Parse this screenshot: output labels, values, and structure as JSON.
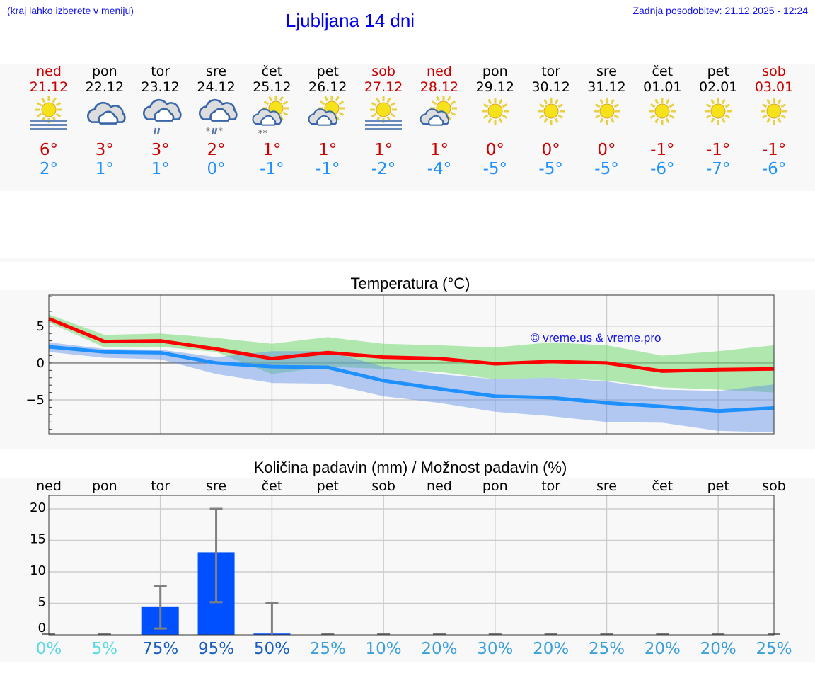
{
  "header": {
    "hint": "(kraj lahko izberete v meniju)",
    "title": "Ljubljana 14 dni",
    "updated": "Zadnja posodobitev: 21.12.2025 - 12:24"
  },
  "colors": {
    "weekend": "#cc0000",
    "max": "#ff0000",
    "min": "#1e90ff",
    "max_band": "#9ee59e",
    "min_band": "#a4c0f0",
    "bar": "#0050ff",
    "errorbar": "#808080"
  },
  "days": [
    {
      "name": "ned",
      "date": "21.12",
      "weekend": true,
      "icon": "fog-sun-icon",
      "max": "6°",
      "min": "2°"
    },
    {
      "name": "pon",
      "date": "22.12",
      "weekend": false,
      "icon": "cloudy-icon",
      "max": "3°",
      "min": "1°"
    },
    {
      "name": "tor",
      "date": "23.12",
      "weekend": false,
      "icon": "rain-cloud-icon",
      "max": "3°",
      "min": "1°"
    },
    {
      "name": "sre",
      "date": "24.12",
      "weekend": false,
      "icon": "sleet-cloud-icon",
      "max": "2°",
      "min": "0°"
    },
    {
      "name": "čet",
      "date": "25.12",
      "weekend": false,
      "icon": "partly-cloudy-snow-icon",
      "max": "1°",
      "min": "-1°"
    },
    {
      "name": "pet",
      "date": "26.12",
      "weekend": false,
      "icon": "partly-cloudy-icon",
      "max": "1°",
      "min": "-1°"
    },
    {
      "name": "sob",
      "date": "27.12",
      "weekend": true,
      "icon": "fog-sun-icon",
      "max": "1°",
      "min": "-2°"
    },
    {
      "name": "ned",
      "date": "28.12",
      "weekend": true,
      "icon": "partly-cloudy-icon",
      "max": "1°",
      "min": "-4°"
    },
    {
      "name": "pon",
      "date": "29.12",
      "weekend": false,
      "icon": "sun-icon",
      "max": "0°",
      "min": "-5°"
    },
    {
      "name": "tor",
      "date": "30.12",
      "weekend": false,
      "icon": "sun-icon",
      "max": "0°",
      "min": "-5°"
    },
    {
      "name": "sre",
      "date": "31.12",
      "weekend": false,
      "icon": "sun-icon",
      "max": "0°",
      "min": "-5°"
    },
    {
      "name": "čet",
      "date": "01.01",
      "weekend": false,
      "icon": "sun-icon",
      "max": "-1°",
      "min": "-6°"
    },
    {
      "name": "pet",
      "date": "02.01",
      "weekend": false,
      "icon": "sun-icon",
      "max": "-1°",
      "min": "-7°"
    },
    {
      "name": "sob",
      "date": "03.01",
      "weekend": true,
      "icon": "sun-icon",
      "max": "-1°",
      "min": "-6°"
    }
  ],
  "chart_data": [
    {
      "type": "line",
      "title": "Temperatura (°C)",
      "ylim": [
        -9.6,
        9.2
      ],
      "yticks": [
        -5,
        0,
        5
      ],
      "ytick_labels": [
        "−5",
        "0",
        "5"
      ],
      "grid": true,
      "watermark": "© vreme.us & vreme.pro",
      "series": [
        {
          "role": "max",
          "values": [
            6,
            2.9,
            3,
            1.9,
            0.6,
            1.4,
            0.8,
            0.6,
            -0.1,
            0.2,
            0,
            -1.1,
            -0.9,
            -0.8
          ],
          "band_upper": [
            6.6,
            3.8,
            4,
            3.4,
            2.6,
            3.5,
            2.6,
            2.4,
            2.1,
            2.8,
            2.4,
            1,
            1.6,
            2.4
          ],
          "band_lower": [
            5.5,
            2.1,
            2.2,
            1.5,
            -1.5,
            -0.5,
            -0.8,
            -1.2,
            -2.2,
            -2.0,
            -2.4,
            -3.3,
            -3.6,
            -4.0
          ]
        },
        {
          "role": "min",
          "values": [
            2.2,
            1.5,
            1.4,
            0,
            -0.5,
            -0.6,
            -2.4,
            -3.5,
            -4.5,
            -4.7,
            -5.4,
            -5.9,
            -6.5,
            -6.1
          ],
          "band_upper": [
            2.8,
            1.9,
            1.8,
            0.8,
            1.6,
            1.6,
            -0.5,
            -1.5,
            -2.2,
            -2.0,
            -2.5,
            -3.6,
            -3.8,
            -2.9
          ],
          "band_lower": [
            1.5,
            0.7,
            0.5,
            -1.5,
            -2.7,
            -2.8,
            -4.5,
            -5.4,
            -6.6,
            -7.2,
            -8,
            -8.1,
            -9.2,
            -9.4
          ]
        }
      ]
    },
    {
      "type": "bar",
      "title": "Količina padavin (mm) / Možnost padavin (%)",
      "ylim": [
        0,
        22
      ],
      "yticks": [
        0,
        5,
        10,
        15,
        20
      ],
      "grid": true,
      "categories": [
        "ned",
        "pon",
        "tor",
        "sre",
        "čet",
        "pet",
        "sob",
        "ned",
        "pon",
        "tor",
        "sre",
        "čet",
        "pet",
        "sob"
      ],
      "values": [
        0,
        0,
        4.4,
        13.1,
        0.2,
        0,
        0,
        0,
        0,
        0,
        0,
        0,
        0,
        0
      ],
      "error_low": [
        0,
        0,
        1,
        5.2,
        0,
        0,
        0,
        0,
        0,
        0,
        0,
        0,
        0,
        0
      ],
      "error_high": [
        0,
        0,
        7.7,
        20,
        5,
        0,
        0,
        0,
        0,
        0,
        0,
        0,
        0,
        0
      ],
      "probability": [
        "0%",
        "5%",
        "75%",
        "95%",
        "50%",
        "25%",
        "10%",
        "20%",
        "30%",
        "20%",
        "25%",
        "20%",
        "20%",
        "25%"
      ],
      "probability_colors": [
        "#5ad8e6",
        "#5ad8e6",
        "#1a5fbf",
        "#1a5fbf",
        "#1a5fbf",
        "#3aa0dc",
        "#3aa0dc",
        "#3aa0dc",
        "#3aa0dc",
        "#3aa0dc",
        "#3aa0dc",
        "#3aa0dc",
        "#3aa0dc",
        "#3aa0dc"
      ]
    }
  ]
}
